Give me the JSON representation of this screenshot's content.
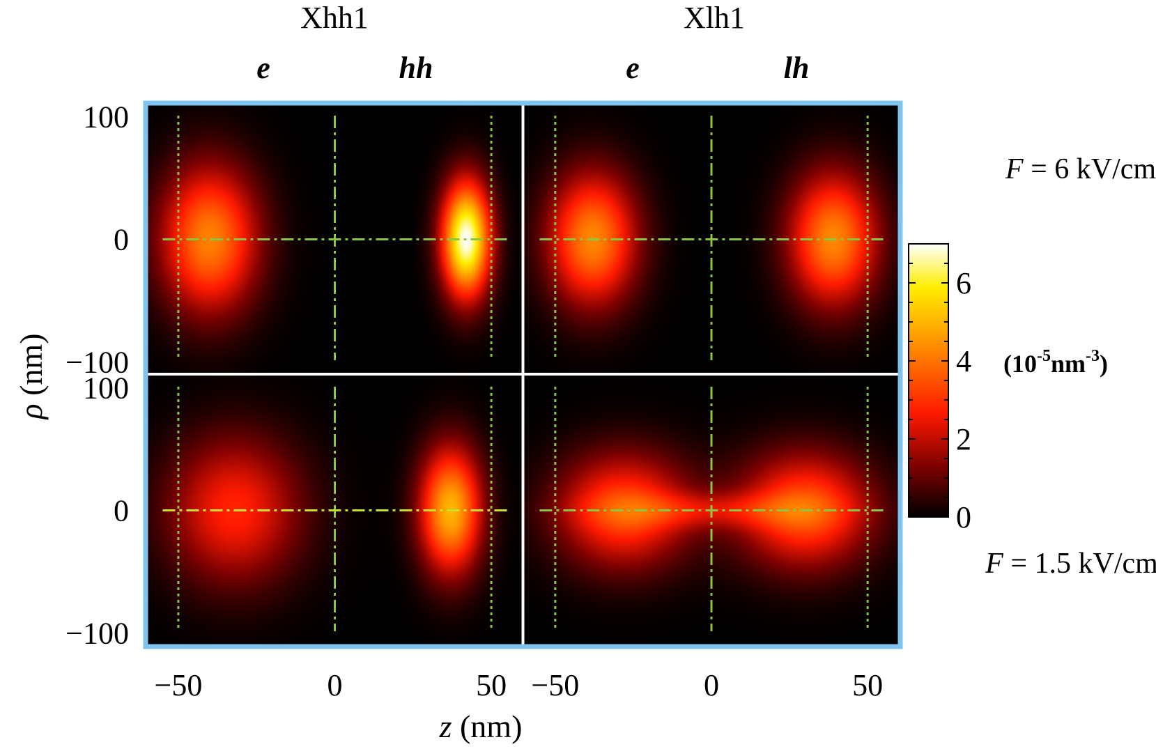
{
  "chart_data": {
    "type": "heatmap",
    "columns": [
      {
        "title": "Xhh1",
        "carriers": [
          "e",
          "hh"
        ]
      },
      {
        "title": "Xlh1",
        "carriers": [
          "e",
          "lh"
        ]
      }
    ],
    "rows": [
      {
        "field_label": "F = 6 kV/cm"
      },
      {
        "field_label": "F = 1.5 kV/cm"
      }
    ],
    "xlabel_symbol": "z",
    "xlabel_unit": "(nm)",
    "ylabel_symbol": "ρ",
    "ylabel_unit": "(nm)",
    "xlim": [
      -60,
      60
    ],
    "ylim": [
      -110,
      110
    ],
    "xticks": [
      -50,
      0,
      50
    ],
    "xtick_labels": [
      "−50",
      "0",
      "50"
    ],
    "yticks": [
      100,
      0,
      -100
    ],
    "ytick_labels": [
      "100",
      "0",
      "−100"
    ],
    "guide_lines": {
      "dotted_z": [
        -50,
        50
      ],
      "dashdot_z": [
        0
      ],
      "dashdot_rho": [
        0
      ]
    },
    "panels": [
      {
        "id": "Xhh1-6kV",
        "blobs": [
          {
            "z": -40,
            "sz": 11,
            "srho": 42,
            "peak": 4.2
          },
          {
            "z": 42,
            "sz": 5.5,
            "srho": 33,
            "peak": 7.0
          }
        ]
      },
      {
        "id": "Xlh1-6kV",
        "blobs": [
          {
            "z": -38,
            "sz": 10,
            "srho": 38,
            "peak": 4.3
          },
          {
            "z": 39,
            "sz": 10,
            "srho": 38,
            "peak": 4.3
          }
        ]
      },
      {
        "id": "Xhh1-1.5kV",
        "blobs": [
          {
            "z": -32,
            "sz": 15,
            "srho": 42,
            "peak": 2.8
          },
          {
            "z": 37,
            "sz": 7,
            "srho": 36,
            "peak": 5.0
          }
        ]
      },
      {
        "id": "Xlh1-1.5kV",
        "blobs": [
          {
            "z": -28,
            "sz": 15,
            "srho": 33,
            "peak": 3.4
          },
          {
            "z": 30,
            "sz": 15,
            "srho": 33,
            "peak": 3.6
          },
          {
            "z": 0,
            "sz": 24,
            "srho": 10,
            "peak": 1.4
          }
        ]
      }
    ],
    "colorbar": {
      "min": 0,
      "max": 7,
      "ticks": [
        0,
        2,
        4,
        6
      ],
      "tick_labels": [
        "0",
        "2",
        "4",
        "6"
      ],
      "unit_prefix": "(10",
      "unit_exp1": "-5",
      "unit_mid": "nm",
      "unit_exp2": "-3",
      "unit_suffix": ")",
      "colormap": [
        "#000000",
        "#7a0000",
        "#ff1a00",
        "#ff8a00",
        "#ffee00",
        "#ffffff"
      ]
    },
    "colors": {
      "frame": "#7fc4ef",
      "divider": "#ffffff",
      "guide": "#8cc63f",
      "guide_axis": "#c8e22a",
      "background": "#000000"
    }
  }
}
